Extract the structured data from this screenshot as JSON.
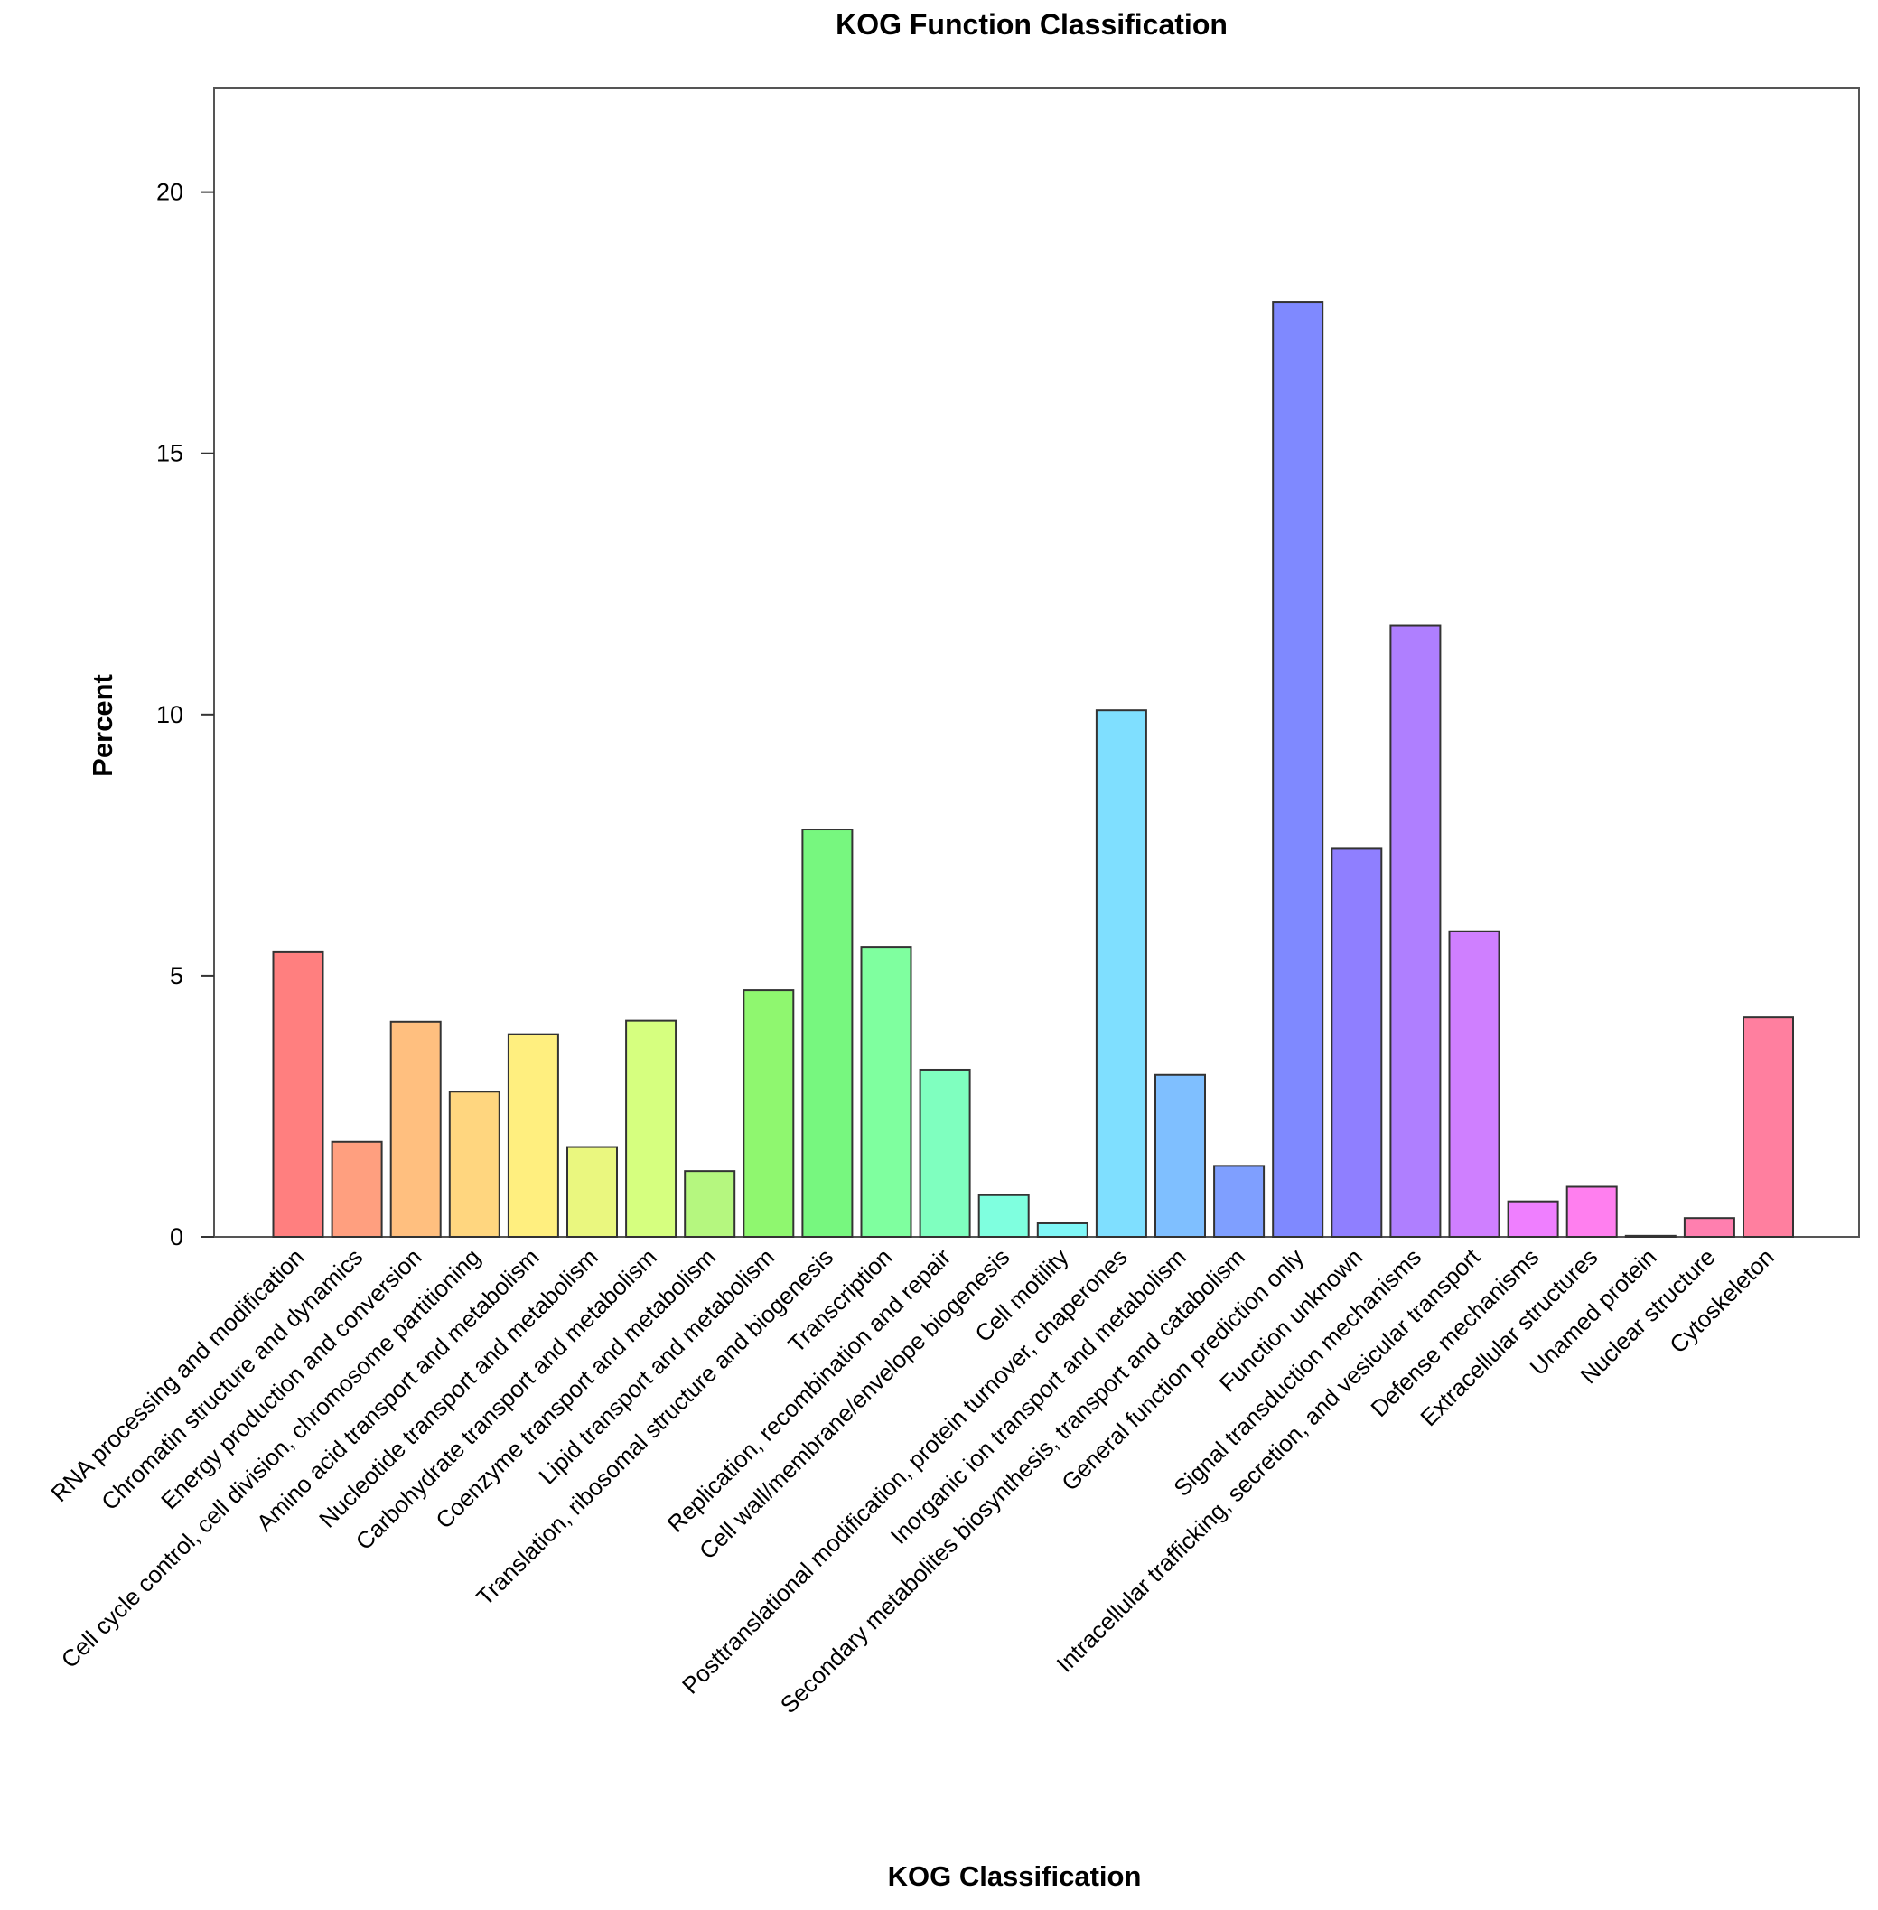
{
  "chart_data": {
    "type": "bar",
    "title": "KOG Function Classification",
    "xlabel": "KOG Classification",
    "ylabel": "Percent",
    "ylim": [
      0,
      22
    ],
    "yticks": [
      0,
      5,
      10,
      15,
      20
    ],
    "grid": false,
    "legend": "none",
    "categories": [
      "RNA processing and modification",
      "Chromatin structure and dynamics",
      "Energy production and conversion",
      "Cell cycle control, cell division, chromosome partitioning",
      "Amino acid transport and metabolism",
      "Nucleotide transport and metabolism",
      "Carbohydrate transport and metabolism",
      "Coenzyme transport and metabolism",
      "Lipid transport and metabolism",
      "Translation, ribosomal structure and biogenesis",
      "Transcription",
      "Replication, recombination and repair",
      "Cell wall/membrane/envelope biogenesis",
      "Cell motility",
      "Posttranslational modification, protein turnover, chaperones",
      "Inorganic ion transport and metabolism",
      "Secondary metabolites biosynthesis, transport and catabolism",
      "General function prediction only",
      "Function unknown",
      "Signal transduction mechanisms",
      "Intracellular trafficking, secretion, and vesicular transport",
      "Defense mechanisms",
      "Extracellular structures",
      "Unamed protein",
      "Nuclear structure",
      "Cytoskeleton"
    ],
    "values": [
      5.45,
      1.82,
      4.12,
      2.78,
      3.88,
      1.72,
      4.14,
      1.26,
      4.72,
      7.8,
      5.55,
      3.2,
      0.8,
      0.26,
      10.08,
      3.1,
      1.36,
      17.9,
      7.43,
      11.7,
      5.85,
      0.68,
      0.96,
      0.02,
      0.36,
      4.2
    ],
    "colors": [
      "#ff7f7f",
      "#ff9f7f",
      "#ffbf7f",
      "#ffd67f",
      "#ffef7f",
      "#eaf77f",
      "#d6ff7f",
      "#b5f77f",
      "#8ff76f",
      "#77f77f",
      "#7fff9f",
      "#7fffbf",
      "#7fffdf",
      "#7ff7f7",
      "#7fdfff",
      "#7fbfff",
      "#7f9fff",
      "#7f89ff",
      "#8f7fff",
      "#af7fff",
      "#cf7fff",
      "#ef7fff",
      "#ff7fef",
      "#ff7fcf",
      "#ff7faf",
      "#ff7f9f"
    ]
  }
}
